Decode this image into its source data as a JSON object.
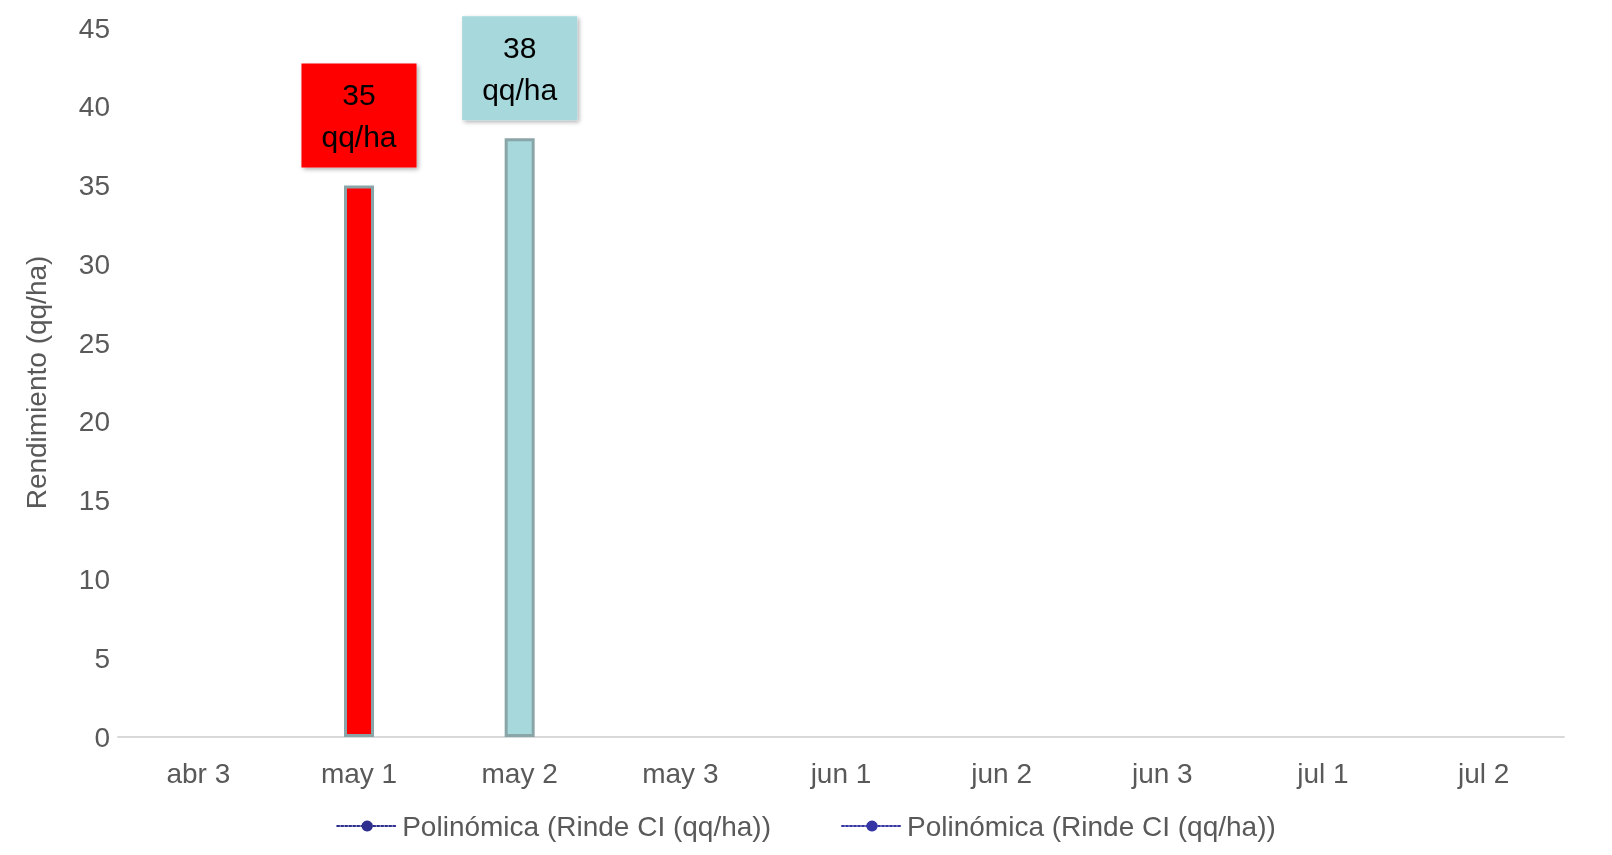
{
  "chart_data": {
    "type": "bar",
    "ylabel": "Rendimiento (qq/ha)",
    "categories": [
      "abr 3",
      "may 1",
      "may 2",
      "may 3",
      "jun 1",
      "jun 2",
      "jun 3",
      "jul 1",
      "jul 2"
    ],
    "values": [
      null,
      35,
      38,
      null,
      null,
      null,
      null,
      null,
      null
    ],
    "colors": [
      "#ff0000",
      "#ff0000",
      "#a6d8dc",
      "#a6d8dc",
      "#a6d8dc",
      "#a6d8dc",
      "#a6d8dc",
      "#a6d8dc",
      "#a6d8dc"
    ],
    "value_labels": [
      null,
      "35\nqq/ha",
      "38\nqq/ha",
      null,
      null,
      null,
      null,
      null,
      null
    ],
    "series": [
      {
        "name": "Polinómica (Rinde CI (qq/ha))",
        "type": "line",
        "color": "#2e2e8f",
        "line_style": "dotted",
        "values": [
          null,
          null,
          null,
          null,
          null,
          null,
          null,
          null,
          null
        ]
      },
      {
        "name": "Polinómica (Rinde CI (qq/ha))",
        "type": "line",
        "color": "#3535a6",
        "line_style": "dotted",
        "values": [
          null,
          null,
          null,
          null,
          null,
          null,
          null,
          null,
          null
        ]
      }
    ],
    "ylim": [
      0,
      45
    ],
    "yticks": [
      0,
      5,
      10,
      15,
      20,
      25,
      30,
      35,
      40,
      45
    ],
    "grid": false,
    "legend": "bottom"
  }
}
